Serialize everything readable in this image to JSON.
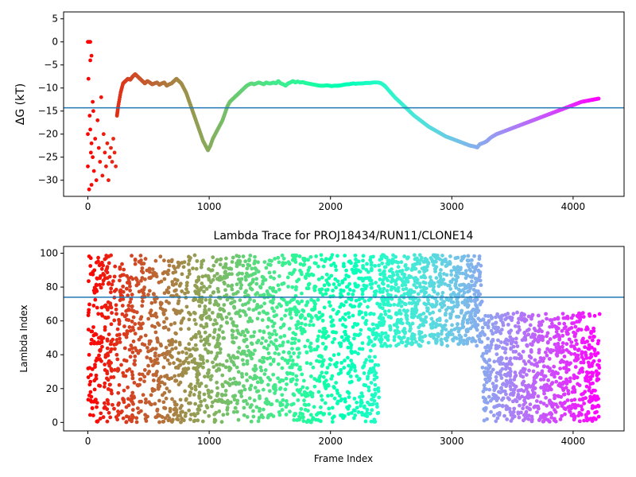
{
  "chart_data": [
    {
      "type": "scatter",
      "title": "",
      "xlabel": "",
      "ylabel": "ΔG (kT)",
      "xlim": [
        -200,
        4420
      ],
      "ylim": [
        -33.5,
        6.5
      ],
      "xticks": [
        0,
        1000,
        2000,
        3000,
        4000
      ],
      "yticks": [
        5,
        0,
        -5,
        -10,
        -15,
        -20,
        -25,
        -30
      ],
      "grid": false,
      "colormap": "rainbow (red → purple with increasing frame)",
      "hline": {
        "y": -14.3,
        "color": "#1f77b4"
      },
      "series": [
        {
          "points": [
            [
              0,
              0
            ],
            [
              10,
              0
            ],
            [
              20,
              0
            ],
            [
              5,
              -8
            ],
            [
              15,
              -16
            ],
            [
              0,
              -20
            ],
            [
              25,
              -24
            ],
            [
              30,
              -3
            ],
            [
              20,
              -4
            ],
            [
              40,
              -13
            ],
            [
              10,
              -32
            ],
            [
              30,
              -31
            ],
            [
              0,
              -27
            ],
            [
              20,
              -19
            ],
            [
              30,
              -22
            ],
            [
              40,
              -25
            ],
            [
              50,
              -28
            ],
            [
              60,
              -21
            ],
            [
              45,
              -15
            ],
            [
              70,
              -30
            ],
            [
              80,
              -17
            ],
            [
              90,
              -23
            ],
            [
              100,
              -26
            ],
            [
              110,
              -12
            ],
            [
              120,
              -29
            ],
            [
              130,
              -20
            ],
            [
              140,
              -24
            ],
            [
              150,
              -27
            ],
            [
              160,
              -22
            ],
            [
              170,
              -30
            ],
            [
              180,
              -25
            ],
            [
              190,
              -23
            ],
            [
              200,
              -26
            ],
            [
              210,
              -21
            ],
            [
              220,
              -24
            ],
            [
              230,
              -27
            ],
            [
              240,
              -16
            ],
            [
              250,
              -14
            ],
            [
              270,
              -11
            ],
            [
              290,
              -9
            ],
            [
              310,
              -8.5
            ],
            [
              330,
              -8
            ],
            [
              350,
              -8.2
            ],
            [
              370,
              -7.5
            ],
            [
              390,
              -7
            ],
            [
              410,
              -7.5
            ],
            [
              430,
              -8
            ],
            [
              450,
              -8.5
            ],
            [
              470,
              -9
            ],
            [
              490,
              -8.5
            ],
            [
              510,
              -8.8
            ],
            [
              530,
              -9.2
            ],
            [
              550,
              -9
            ],
            [
              570,
              -8.8
            ],
            [
              590,
              -9.3
            ],
            [
              610,
              -9
            ],
            [
              630,
              -8.8
            ],
            [
              650,
              -9.5
            ],
            [
              670,
              -9.2
            ],
            [
              690,
              -9
            ],
            [
              710,
              -8.5
            ],
            [
              730,
              -8
            ],
            [
              750,
              -8.5
            ],
            [
              770,
              -9
            ],
            [
              790,
              -10
            ],
            [
              810,
              -11
            ],
            [
              830,
              -12.5
            ],
            [
              850,
              -14
            ],
            [
              870,
              -15.5
            ],
            [
              890,
              -17
            ],
            [
              910,
              -18.5
            ],
            [
              930,
              -20
            ],
            [
              950,
              -21.5
            ],
            [
              970,
              -22.5
            ],
            [
              990,
              -23.5
            ],
            [
              1010,
              -22.5
            ],
            [
              1030,
              -21
            ],
            [
              1050,
              -20
            ],
            [
              1070,
              -19
            ],
            [
              1090,
              -18
            ],
            [
              1110,
              -17
            ],
            [
              1130,
              -15.5
            ],
            [
              1150,
              -14
            ],
            [
              1170,
              -13
            ],
            [
              1190,
              -12.5
            ],
            [
              1210,
              -12
            ],
            [
              1230,
              -11.5
            ],
            [
              1250,
              -11
            ],
            [
              1270,
              -10.5
            ],
            [
              1290,
              -10
            ],
            [
              1310,
              -9.5
            ],
            [
              1330,
              -9.2
            ],
            [
              1350,
              -9
            ],
            [
              1370,
              -9.2
            ],
            [
              1390,
              -9
            ],
            [
              1410,
              -8.8
            ],
            [
              1430,
              -9
            ],
            [
              1450,
              -9.2
            ],
            [
              1470,
              -8.8
            ],
            [
              1490,
              -9
            ],
            [
              1510,
              -9
            ],
            [
              1530,
              -8.8
            ],
            [
              1550,
              -9
            ],
            [
              1570,
              -8.5
            ],
            [
              1590,
              -9
            ],
            [
              1610,
              -9.2
            ],
            [
              1630,
              -9.5
            ],
            [
              1650,
              -9
            ],
            [
              1670,
              -8.8
            ],
            [
              1690,
              -8.5
            ],
            [
              1710,
              -8.8
            ],
            [
              1730,
              -8.6
            ],
            [
              1750,
              -8.8
            ],
            [
              1770,
              -8.7
            ],
            [
              1790,
              -8.9
            ],
            [
              1810,
              -9
            ],
            [
              1830,
              -9.1
            ],
            [
              1850,
              -9.2
            ],
            [
              1870,
              -9.3
            ],
            [
              1890,
              -9.4
            ],
            [
              1910,
              -9.5
            ],
            [
              1930,
              -9.5
            ],
            [
              1950,
              -9.5
            ],
            [
              1970,
              -9.4
            ],
            [
              1990,
              -9.5
            ],
            [
              2010,
              -9.6
            ],
            [
              2030,
              -9.5
            ],
            [
              2050,
              -9.5
            ],
            [
              2070,
              -9.5
            ],
            [
              2090,
              -9.4
            ],
            [
              2110,
              -9.3
            ],
            [
              2130,
              -9.2
            ],
            [
              2150,
              -9.2
            ],
            [
              2170,
              -9.1
            ],
            [
              2190,
              -9
            ],
            [
              2210,
              -9.1
            ],
            [
              2230,
              -9
            ],
            [
              2250,
              -9
            ],
            [
              2270,
              -9
            ],
            [
              2290,
              -8.9
            ],
            [
              2310,
              -8.9
            ],
            [
              2330,
              -8.9
            ],
            [
              2350,
              -8.8
            ],
            [
              2370,
              -8.8
            ],
            [
              2390,
              -8.8
            ],
            [
              2410,
              -8.9
            ],
            [
              2430,
              -9.2
            ],
            [
              2450,
              -9.6
            ],
            [
              2470,
              -10.2
            ],
            [
              2490,
              -10.8
            ],
            [
              2510,
              -11.4
            ],
            [
              2530,
              -12
            ],
            [
              2550,
              -12.5
            ],
            [
              2570,
              -13
            ],
            [
              2590,
              -13.5
            ],
            [
              2610,
              -14
            ],
            [
              2630,
              -14.5
            ],
            [
              2650,
              -15
            ],
            [
              2670,
              -15.5
            ],
            [
              2690,
              -16
            ],
            [
              2710,
              -16.4
            ],
            [
              2730,
              -16.8
            ],
            [
              2750,
              -17.2
            ],
            [
              2770,
              -17.6
            ],
            [
              2790,
              -18
            ],
            [
              2810,
              -18.4
            ],
            [
              2830,
              -18.7
            ],
            [
              2850,
              -19
            ],
            [
              2870,
              -19.3
            ],
            [
              2890,
              -19.6
            ],
            [
              2910,
              -19.9
            ],
            [
              2930,
              -20.2
            ],
            [
              2950,
              -20.5
            ],
            [
              2970,
              -20.7
            ],
            [
              2990,
              -20.9
            ],
            [
              3010,
              -21.1
            ],
            [
              3030,
              -21.3
            ],
            [
              3050,
              -21.5
            ],
            [
              3070,
              -21.7
            ],
            [
              3090,
              -21.9
            ],
            [
              3110,
              -22.1
            ],
            [
              3130,
              -22.3
            ],
            [
              3150,
              -22.5
            ],
            [
              3170,
              -22.6
            ],
            [
              3190,
              -22.7
            ],
            [
              3210,
              -22.9
            ],
            [
              3230,
              -22.2
            ],
            [
              3250,
              -22
            ],
            [
              3270,
              -21.8
            ],
            [
              3290,
              -21.5
            ],
            [
              3310,
              -21
            ],
            [
              3330,
              -20.6
            ],
            [
              3350,
              -20.3
            ],
            [
              3370,
              -20
            ],
            [
              3390,
              -19.8
            ],
            [
              3410,
              -19.6
            ],
            [
              3430,
              -19.4
            ],
            [
              3450,
              -19.2
            ],
            [
              3470,
              -19
            ],
            [
              3490,
              -18.8
            ],
            [
              3510,
              -18.6
            ],
            [
              3530,
              -18.4
            ],
            [
              3550,
              -18.2
            ],
            [
              3570,
              -18
            ],
            [
              3590,
              -17.8
            ],
            [
              3610,
              -17.6
            ],
            [
              3630,
              -17.4
            ],
            [
              3650,
              -17.2
            ],
            [
              3670,
              -17
            ],
            [
              3690,
              -16.8
            ],
            [
              3710,
              -16.6
            ],
            [
              3730,
              -16.4
            ],
            [
              3750,
              -16.2
            ],
            [
              3770,
              -16
            ],
            [
              3790,
              -15.8
            ],
            [
              3810,
              -15.6
            ],
            [
              3830,
              -15.4
            ],
            [
              3850,
              -15.2
            ],
            [
              3870,
              -15
            ],
            [
              3890,
              -14.8
            ],
            [
              3910,
              -14.6
            ],
            [
              3930,
              -14.4
            ],
            [
              3950,
              -14.2
            ],
            [
              3970,
              -14
            ],
            [
              3990,
              -13.8
            ],
            [
              4010,
              -13.6
            ],
            [
              4030,
              -13.4
            ],
            [
              4050,
              -13.2
            ],
            [
              4070,
              -13
            ],
            [
              4090,
              -12.9
            ],
            [
              4110,
              -12.8
            ],
            [
              4130,
              -12.7
            ],
            [
              4150,
              -12.6
            ],
            [
              4170,
              -12.5
            ],
            [
              4190,
              -12.4
            ],
            [
              4210,
              -12.3
            ]
          ]
        }
      ]
    },
    {
      "type": "scatter",
      "title": "Lambda Trace for PROJ18434/RUN11/CLONE14",
      "xlabel": "Frame Index",
      "ylabel": "Lambda Index",
      "xlim": [
        -200,
        4420
      ],
      "ylim": [
        -5,
        104
      ],
      "xticks": [
        0,
        1000,
        2000,
        3000,
        4000
      ],
      "yticks": [
        0,
        20,
        40,
        60,
        80,
        100
      ],
      "grid": false,
      "colormap": "rainbow (red → purple with increasing frame)",
      "hline": {
        "y": 74,
        "color": "#1f77b4"
      },
      "series": [
        {
          "segments": [
            {
              "x_range": [
                0,
                240
              ],
              "y_range": [
                0,
                99
              ],
              "density": "dense"
            },
            {
              "x_range": [
                240,
                960
              ],
              "y_range": [
                0,
                99
              ],
              "density": "dense"
            },
            {
              "x_range": [
                960,
                2400
              ],
              "y_range": [
                0,
                99
              ],
              "density": "dense"
            },
            {
              "x_range": [
                2400,
                3250
              ],
              "y_range": [
                45,
                99
              ],
              "density": "dense"
            },
            {
              "x_range": [
                3250,
                4220
              ],
              "y_range": [
                0,
                65
              ],
              "density": "dense"
            }
          ]
        }
      ]
    }
  ]
}
